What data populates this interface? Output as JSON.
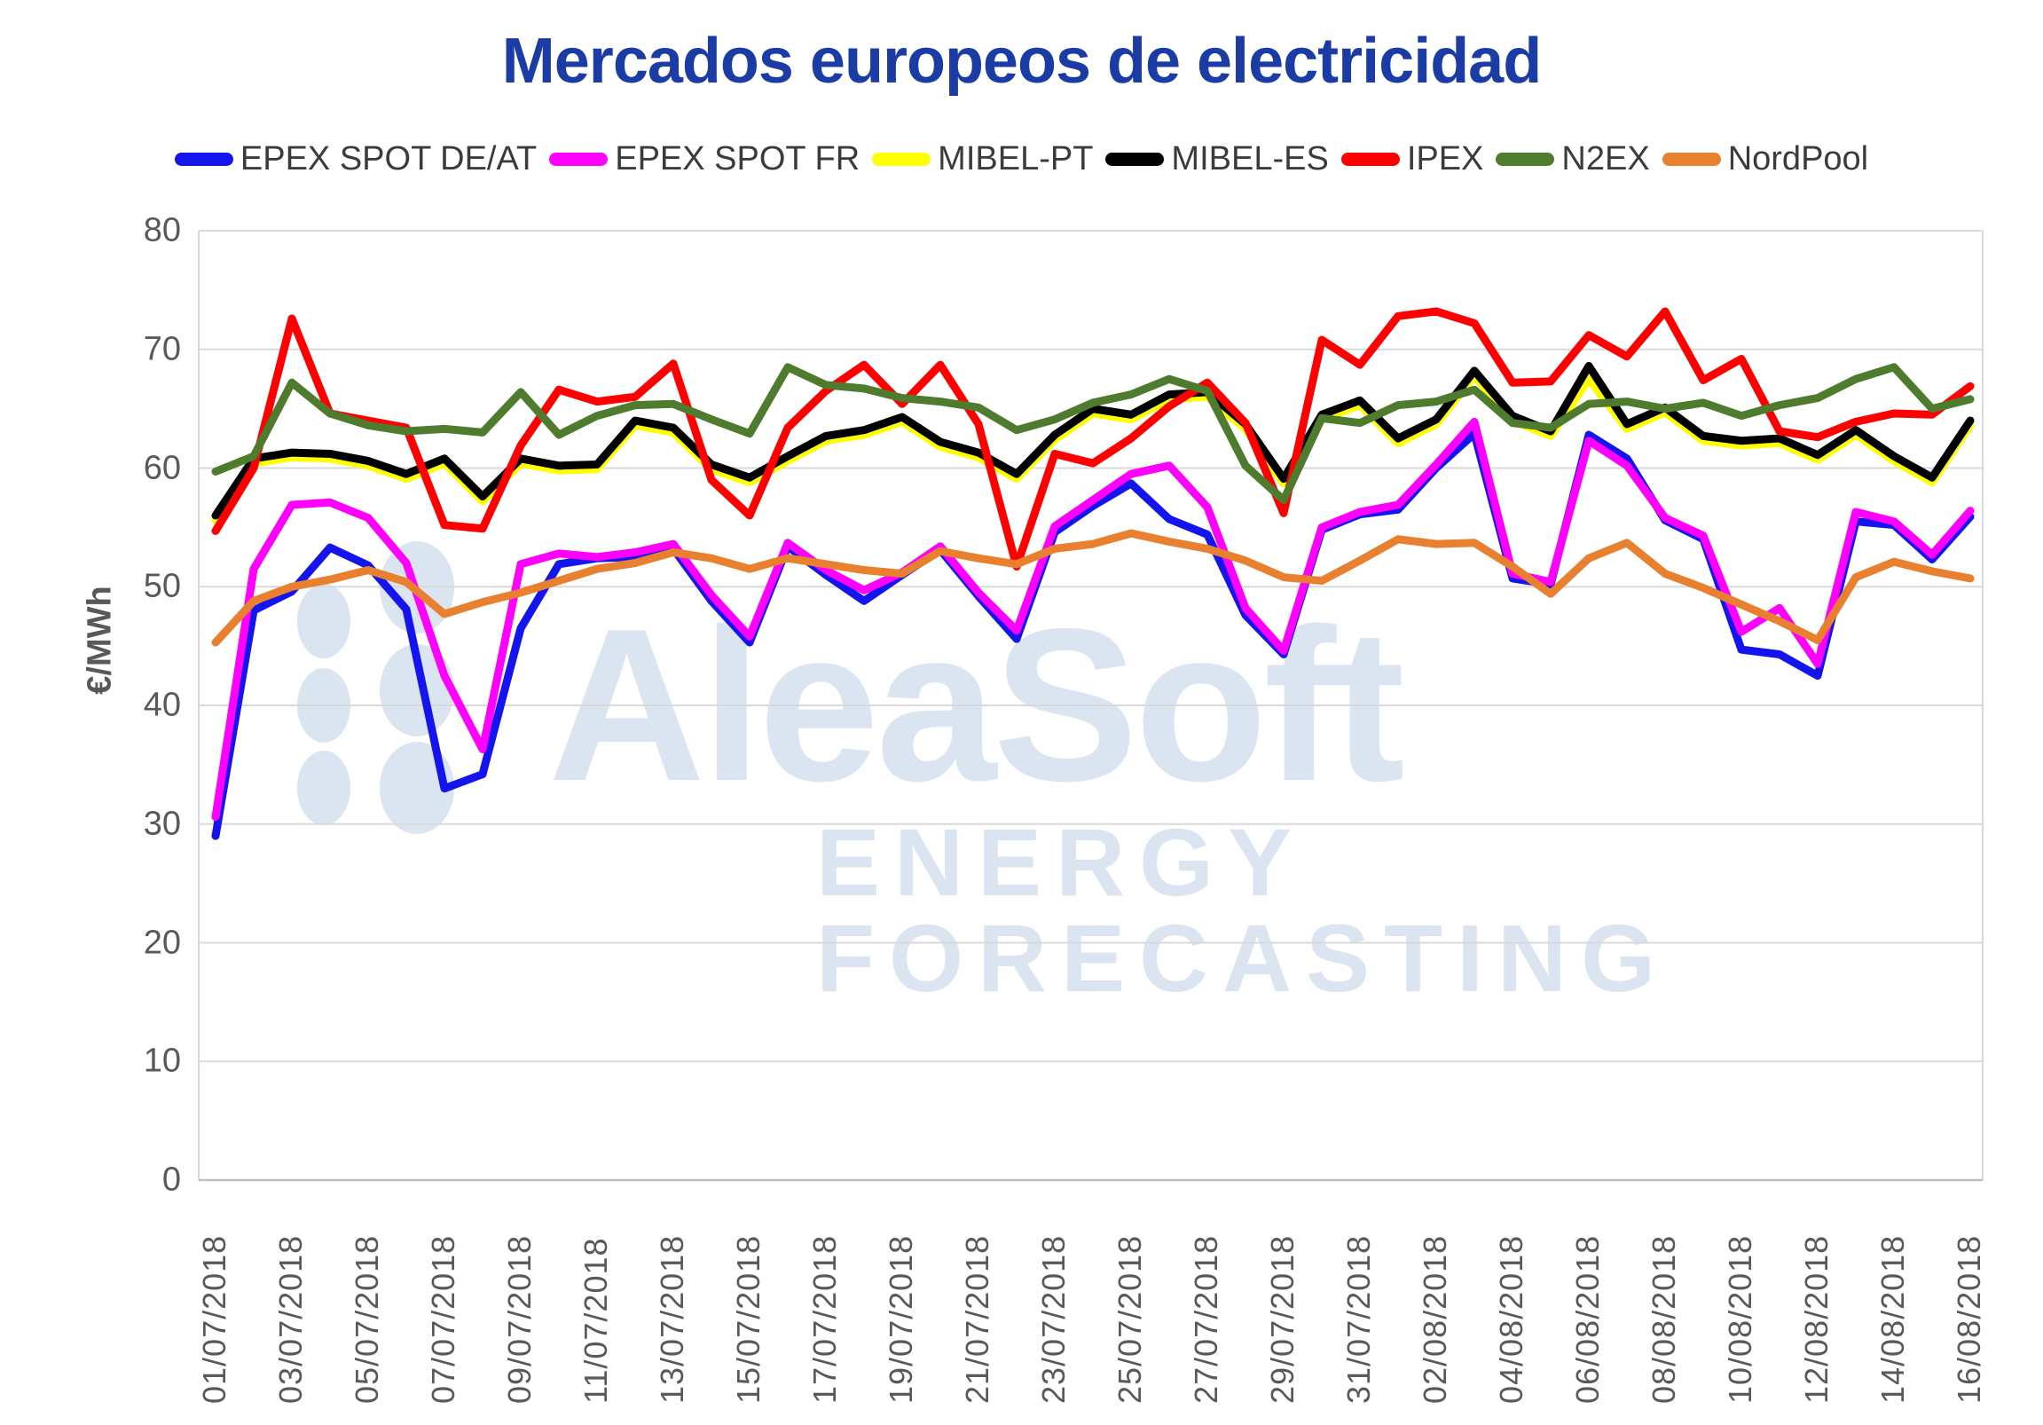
{
  "title": {
    "text": "Mercados europeos de electricidad",
    "color": "#1B3CA4"
  },
  "watermark": {
    "line1": "AleaSoft",
    "line2": "ENERGY FORECASTING",
    "color": "#DBE4F1"
  },
  "axis": {
    "y_label": "€/MWh",
    "y_ticks": [
      0,
      10,
      20,
      30,
      40,
      50,
      60,
      70,
      80
    ],
    "tick_color": "#595959",
    "gridline_color": "#D9D9D9",
    "axis_line_color": "#BFBFBF"
  },
  "chart_data": {
    "type": "line",
    "title": "Mercados europeos de electricidad",
    "ylabel": "€/MWh",
    "ylim": [
      0,
      80
    ],
    "grid": true,
    "legend_position": "top",
    "x_labels_shown_every": 2,
    "x": [
      "01/07/2018",
      "02/07/2018",
      "03/07/2018",
      "04/07/2018",
      "05/07/2018",
      "06/07/2018",
      "07/07/2018",
      "08/07/2018",
      "09/07/2018",
      "10/07/2018",
      "11/07/2018",
      "12/07/2018",
      "13/07/2018",
      "14/07/2018",
      "15/07/2018",
      "16/07/2018",
      "17/07/2018",
      "18/07/2018",
      "19/07/2018",
      "20/07/2018",
      "21/07/2018",
      "22/07/2018",
      "23/07/2018",
      "24/07/2018",
      "25/07/2018",
      "26/07/2018",
      "27/07/2018",
      "28/07/2018",
      "29/07/2018",
      "30/07/2018",
      "31/07/2018",
      "01/08/2018",
      "02/08/2018",
      "03/08/2018",
      "04/08/2018",
      "05/08/2018",
      "06/08/2018",
      "07/08/2018",
      "08/08/2018",
      "09/08/2018",
      "10/08/2018",
      "11/08/2018",
      "12/08/2018",
      "13/08/2018",
      "14/08/2018",
      "15/08/2018",
      "16/08/2018"
    ],
    "series": [
      {
        "name": "EPEX SPOT DE/AT",
        "color": "#1414EE",
        "values": [
          29.0,
          48.0,
          49.6,
          53.3,
          51.8,
          48.1,
          33.0,
          34.2,
          46.5,
          51.9,
          52.4,
          52.5,
          53.2,
          48.8,
          45.3,
          53.4,
          51.0,
          48.8,
          51.0,
          53.1,
          49.2,
          45.6,
          54.6,
          56.8,
          58.7,
          55.7,
          54.4,
          47.6,
          44.3,
          54.8,
          56.1,
          56.5,
          60.0,
          62.9,
          50.7,
          50.2,
          62.8,
          60.8,
          55.6,
          54.0,
          44.7,
          44.3,
          42.5,
          55.5,
          55.2,
          52.3,
          55.9
        ]
      },
      {
        "name": "EPEX SPOT FR",
        "color": "#FF00FF",
        "values": [
          30.6,
          51.5,
          56.9,
          57.1,
          55.8,
          52.0,
          42.5,
          36.3,
          51.9,
          52.8,
          52.5,
          52.9,
          53.6,
          49.3,
          45.8,
          53.7,
          51.4,
          49.7,
          51.2,
          53.4,
          49.5,
          46.3,
          55.1,
          57.3,
          59.5,
          60.2,
          56.7,
          48.2,
          44.6,
          55.0,
          56.3,
          56.9,
          60.3,
          63.9,
          51.1,
          50.4,
          62.3,
          60.2,
          55.8,
          54.3,
          46.2,
          48.2,
          43.5,
          56.3,
          55.5,
          52.7,
          56.4
        ]
      },
      {
        "name": "MIBEL-PT",
        "color": "#FFFF00",
        "values": [
          55.6,
          60.4,
          60.9,
          60.8,
          60.2,
          59.1,
          60.4,
          57.2,
          60.4,
          59.8,
          59.9,
          63.6,
          63.0,
          59.9,
          58.8,
          60.6,
          62.3,
          62.8,
          63.9,
          61.8,
          60.9,
          59.1,
          62.4,
          64.6,
          64.1,
          65.8,
          66.0,
          63.3,
          58.7,
          64.1,
          65.3,
          62.1,
          63.7,
          67.8,
          64.0,
          62.7,
          67.5,
          63.3,
          64.7,
          62.3,
          61.9,
          62.1,
          60.7,
          62.8,
          60.6,
          58.8,
          63.6
        ]
      },
      {
        "name": "MIBEL-ES",
        "color": "#000000",
        "values": [
          56.0,
          60.8,
          61.3,
          61.2,
          60.6,
          59.5,
          60.8,
          57.6,
          60.8,
          60.2,
          60.3,
          64.0,
          63.4,
          60.3,
          59.2,
          61.0,
          62.7,
          63.2,
          64.3,
          62.2,
          61.3,
          59.5,
          62.8,
          65.0,
          64.5,
          66.2,
          66.4,
          63.7,
          59.1,
          64.5,
          65.7,
          62.5,
          64.1,
          68.2,
          64.4,
          63.1,
          68.6,
          63.7,
          65.1,
          62.7,
          62.3,
          62.5,
          61.1,
          63.2,
          61.0,
          59.2,
          64.0
        ]
      },
      {
        "name": "IPEX",
        "color": "#FF0000",
        "values": [
          54.7,
          60.0,
          72.6,
          64.6,
          64.0,
          63.4,
          55.2,
          54.9,
          61.9,
          66.6,
          65.6,
          66.0,
          68.8,
          59.0,
          56.0,
          63.4,
          66.5,
          68.7,
          65.4,
          68.7,
          63.7,
          51.7,
          61.2,
          60.4,
          62.5,
          65.2,
          67.2,
          63.8,
          56.2,
          70.8,
          68.7,
          72.8,
          73.2,
          72.2,
          67.2,
          67.3,
          71.2,
          69.4,
          73.2,
          67.4,
          69.2,
          63.1,
          62.6,
          63.9,
          64.6,
          64.5,
          66.9
        ]
      },
      {
        "name": "N2EX",
        "color": "#4E7B2D",
        "values": [
          59.7,
          61.0,
          67.2,
          64.6,
          63.6,
          63.1,
          63.3,
          63.0,
          66.4,
          62.8,
          64.4,
          65.3,
          65.4,
          64.1,
          62.9,
          68.5,
          67.0,
          66.7,
          65.9,
          65.6,
          65.1,
          63.2,
          64.1,
          65.5,
          66.2,
          67.5,
          66.5,
          60.2,
          57.3,
          64.2,
          63.8,
          65.3,
          65.6,
          66.6,
          63.8,
          63.4,
          65.4,
          65.6,
          65.0,
          65.5,
          64.4,
          65.3,
          65.9,
          67.5,
          68.5,
          65.0,
          65.8
        ]
      },
      {
        "name": "NordPool",
        "color": "#E8802F",
        "values": [
          45.3,
          48.8,
          50.0,
          50.6,
          51.4,
          50.4,
          47.7,
          48.7,
          49.5,
          50.5,
          51.5,
          52.0,
          52.9,
          52.4,
          51.5,
          52.4,
          51.9,
          51.4,
          51.1,
          53.0,
          52.4,
          51.9,
          53.2,
          53.6,
          54.5,
          53.8,
          53.2,
          52.2,
          50.8,
          50.5,
          52.2,
          54.0,
          53.6,
          53.7,
          51.7,
          49.4,
          52.4,
          53.7,
          51.1,
          49.9,
          48.5,
          47.1,
          45.5,
          50.8,
          52.1,
          51.3,
          50.7
        ]
      }
    ]
  },
  "layout_note": "values in EUR/MWh, daily prices 01/07/2018 - 16/08/2018"
}
